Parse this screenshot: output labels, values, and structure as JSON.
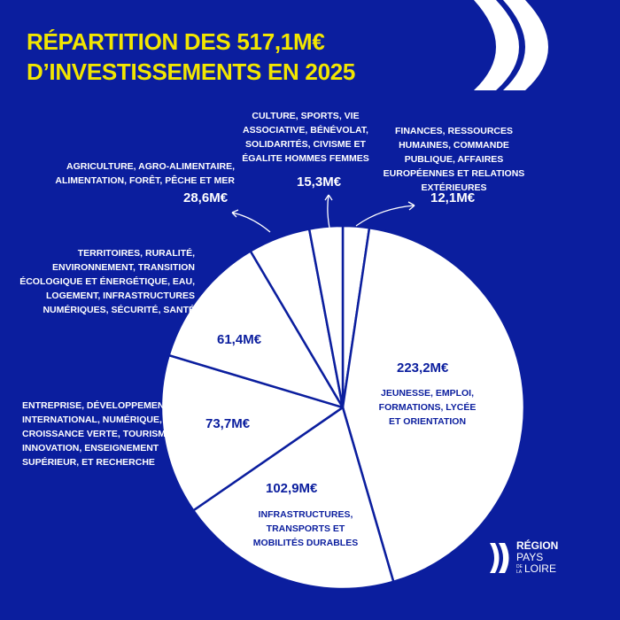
{
  "title": [
    "RÉPARTITION DES 517,1M€",
    "D’INVESTISSEMENTS EN 2025"
  ],
  "colors": {
    "background": "#0b1e9e",
    "title": "#f2e600",
    "slice": "#ffffff",
    "slice_border": "#0b1e9e"
  },
  "chart_data": {
    "type": "pie",
    "title": "RÉPARTITION DES 517,1M€ D’INVESTISSEMENTS EN 2025",
    "unit": "M€",
    "slices": [
      {
        "label": "FINANCES, RESSOURCES HUMAINES, COMMANDE PUBLIQUE, AFFAIRES EUROPÉENNES ET RELATIONS EXTÉRIEURES",
        "value": 12.1,
        "value_label": "12,1M€"
      },
      {
        "label": "JEUNESSE, EMPLOI, FORMATIONS, LYCÉE ET ORIENTATION",
        "value": 223.2,
        "value_label": "223,2M€"
      },
      {
        "label": "INFRASTRUCTURES, TRANSPORTS ET MOBILITÉS DURABLES",
        "value": 102.9,
        "value_label": "102,9M€"
      },
      {
        "label": "ENTREPRISE, DÉVELOPPEMENT INTERNATIONAL, NUMÉRIQUE, CROISSANCE VERTE, TOURISME, INNOVATION, ENSEIGNEMENT SUPÉRIEUR, ET RECHERCHE",
        "value": 73.7,
        "value_label": "73,7M€"
      },
      {
        "label": "TERRITOIRES, RURALITÉ, ENVIRONNEMENT, TRANSITION ÉCOLOGIQUE ET ÉNERGÉTIQUE, EAU, LOGEMENT, INFRASTRUCTURES NUMÉRIQUES, SÉCURITÉ, SANTÉ",
        "value": 61.4,
        "value_label": "61,4M€"
      },
      {
        "label": "AGRICULTURE, AGRO-ALIMENTAIRE, ALIMENTATION, FORÊT, PÊCHE ET MER",
        "value": 28.6,
        "value_label": "28,6M€"
      },
      {
        "label": "CULTURE, SPORTS, VIE ASSOCIATIVE, BÉNÉVOLAT, SOLIDARITÉS, CIVISME ET ÉGALITE HOMMES FEMMES",
        "value": 15.3,
        "value_label": "15,3M€"
      }
    ],
    "start": "top",
    "direction": "clockwise"
  },
  "logo": {
    "line1": "RÉGION",
    "line2": "PAYS",
    "de": "DE",
    "la": "LA",
    "line3": "LOIRE"
  }
}
